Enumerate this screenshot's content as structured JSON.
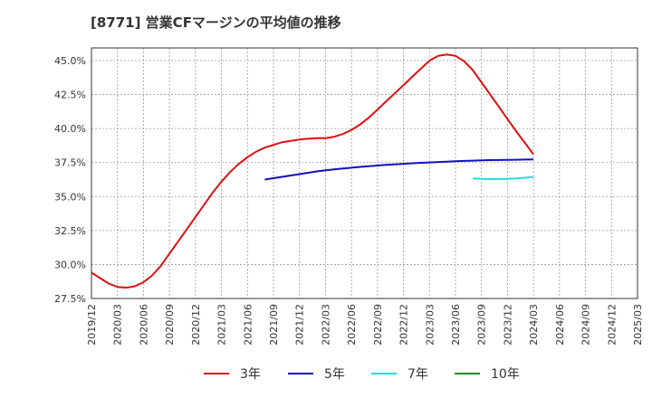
{
  "chart_data": {
    "type": "line",
    "title": "[8771]  営業CFマージンの平均値の推移",
    "xlabel": "",
    "ylabel": "",
    "ylim": [
      27.5,
      46.0
    ],
    "y_ticks": [
      "27.5%",
      "30.0%",
      "32.5%",
      "35.0%",
      "37.5%",
      "40.0%",
      "42.5%",
      "45.0%"
    ],
    "x_ticks": [
      "2019/12",
      "2020/03",
      "2020/06",
      "2020/09",
      "2020/12",
      "2021/03",
      "2021/06",
      "2021/09",
      "2021/12",
      "2022/03",
      "2022/06",
      "2022/09",
      "2022/12",
      "2023/03",
      "2023/06",
      "2023/09",
      "2023/12",
      "2024/03",
      "2024/06",
      "2024/09",
      "2024/12",
      "2025/03"
    ],
    "grid": true,
    "legend_position": "bottom",
    "series": [
      {
        "name": "3年",
        "color": "#dd1111",
        "x": [
          "2019/12",
          "2020/01",
          "2020/02",
          "2020/03",
          "2020/04",
          "2020/05",
          "2020/06",
          "2020/07",
          "2020/08",
          "2020/09",
          "2020/10",
          "2020/11",
          "2020/12",
          "2021/01",
          "2021/02",
          "2021/03",
          "2021/04",
          "2021/05",
          "2021/06",
          "2021/07",
          "2021/08",
          "2021/09",
          "2021/10",
          "2021/11",
          "2021/12",
          "2022/01",
          "2022/02",
          "2022/03",
          "2022/04",
          "2022/05",
          "2022/06",
          "2022/07",
          "2022/08",
          "2022/09",
          "2022/10",
          "2022/11",
          "2022/12",
          "2023/01",
          "2023/02",
          "2023/03",
          "2023/04",
          "2023/05",
          "2023/06",
          "2023/07",
          "2023/08",
          "2023/09",
          "2023/10",
          "2023/11",
          "2023/12",
          "2024/01",
          "2024/02",
          "2024/03"
        ],
        "values": [
          29.4,
          29.0,
          28.6,
          28.35,
          28.3,
          28.4,
          28.7,
          29.2,
          29.9,
          30.8,
          31.7,
          32.6,
          33.5,
          34.4,
          35.3,
          36.1,
          36.8,
          37.4,
          37.9,
          38.3,
          38.6,
          38.8,
          39.0,
          39.1,
          39.2,
          39.25,
          39.3,
          39.3,
          39.4,
          39.6,
          39.9,
          40.3,
          40.8,
          41.4,
          42.0,
          42.6,
          43.2,
          43.8,
          44.4,
          45.0,
          45.35,
          45.45,
          45.35,
          44.95,
          44.3,
          43.4,
          42.5,
          41.6,
          40.7,
          39.8,
          38.95,
          38.1
        ]
      },
      {
        "name": "5年",
        "color": "#1111bb",
        "x": [
          "2021/08",
          "2021/09",
          "2021/10",
          "2021/11",
          "2021/12",
          "2022/01",
          "2022/02",
          "2022/03",
          "2022/04",
          "2022/05",
          "2022/06",
          "2022/07",
          "2022/08",
          "2022/09",
          "2022/10",
          "2022/11",
          "2022/12",
          "2023/01",
          "2023/02",
          "2023/03",
          "2023/04",
          "2023/05",
          "2023/06",
          "2023/07",
          "2023/08",
          "2023/09",
          "2023/10",
          "2023/11",
          "2023/12",
          "2024/01",
          "2024/02",
          "2024/03"
        ],
        "values": [
          36.25,
          36.35,
          36.45,
          36.55,
          36.65,
          36.75,
          36.85,
          36.93,
          37.0,
          37.06,
          37.12,
          37.18,
          37.23,
          37.28,
          37.33,
          37.37,
          37.41,
          37.45,
          37.48,
          37.51,
          37.54,
          37.57,
          37.6,
          37.62,
          37.64,
          37.66,
          37.68,
          37.69,
          37.7,
          37.71,
          37.72,
          37.73
        ]
      },
      {
        "name": "7年",
        "color": "#22dddd",
        "x": [
          "2023/08",
          "2023/09",
          "2023/10",
          "2023/11",
          "2023/12",
          "2024/01",
          "2024/02",
          "2024/03"
        ],
        "values": [
          36.32,
          36.3,
          36.28,
          36.28,
          36.3,
          36.33,
          36.38,
          36.45
        ]
      },
      {
        "name": "10年",
        "color": "#228822",
        "x": [],
        "values": []
      }
    ]
  }
}
